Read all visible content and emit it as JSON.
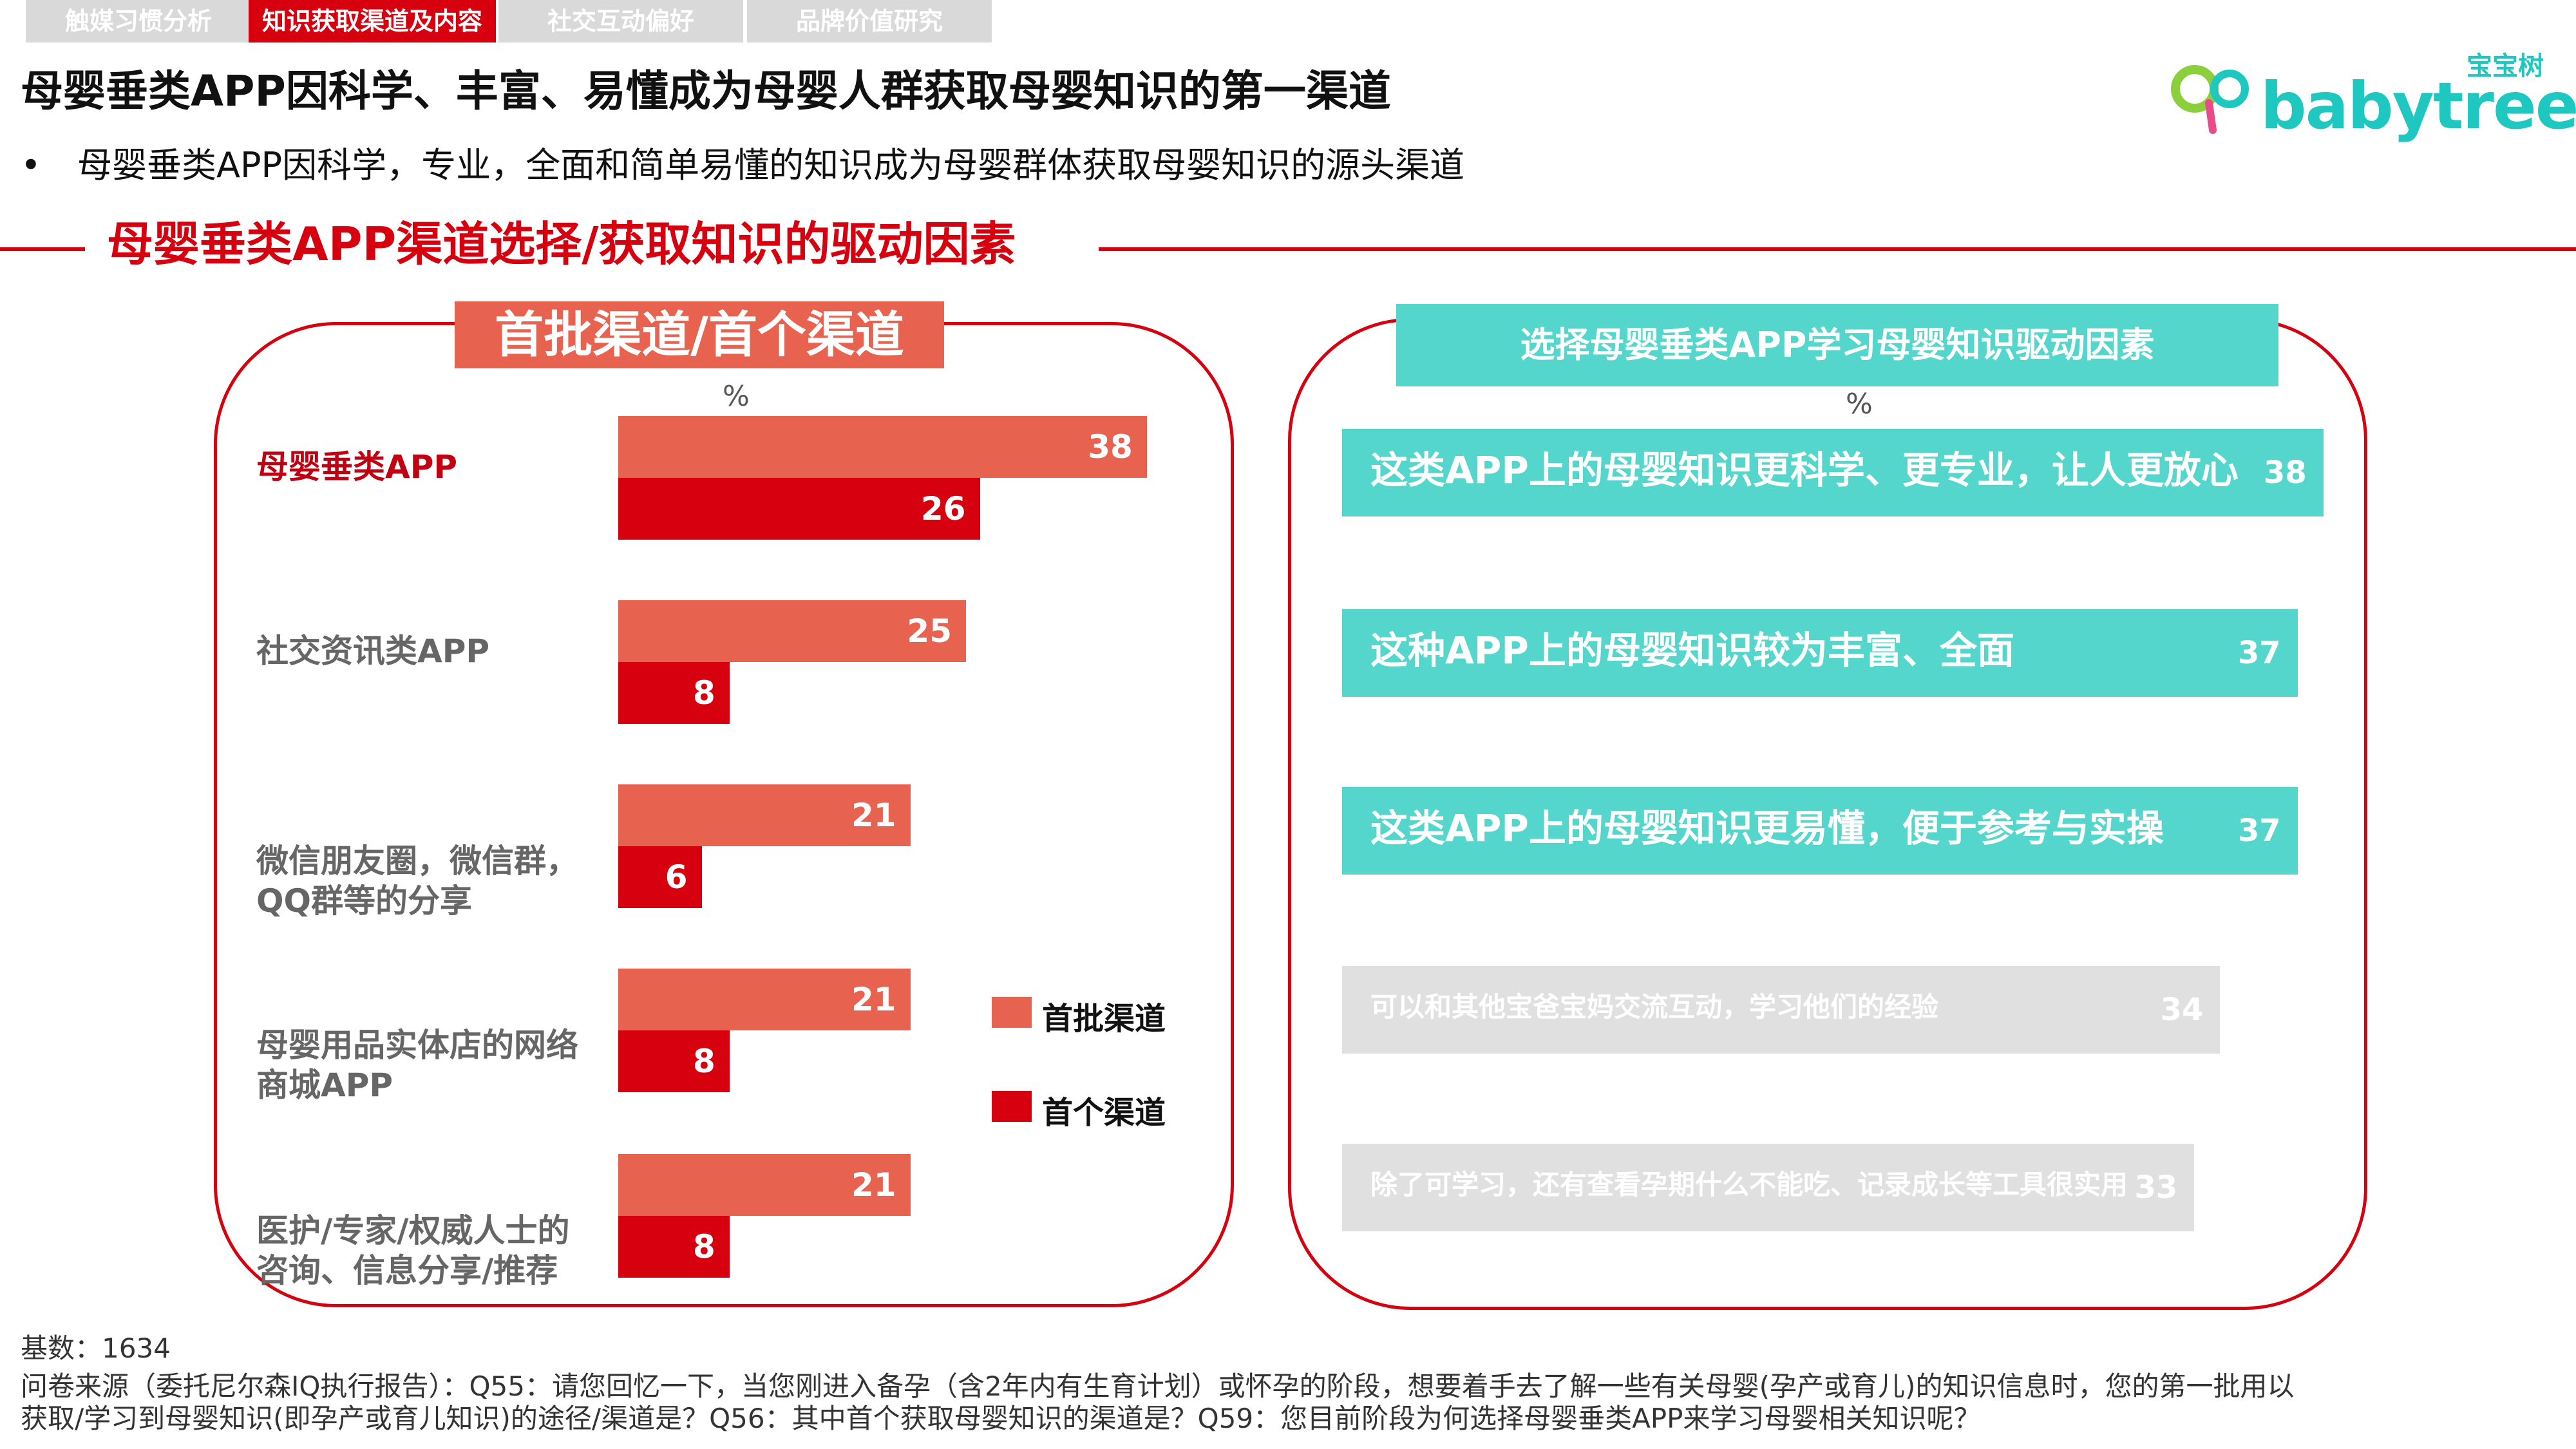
{
  "tabs": [
    {
      "label": "触媒习惯分析",
      "active": false
    },
    {
      "label": "知识获取渠道及内容",
      "active": true
    },
    {
      "label": "社交互动偏好",
      "active": false
    },
    {
      "label": "品牌价值研究",
      "active": false
    }
  ],
  "title": "母婴垂类APP因科学、丰富、易懂成为母婴人群获取母婴知识的第一渠道",
  "bullet": {
    "marker": "•",
    "text": "母婴垂类APP因科学，专业，全面和简单易懂的知识成为母婴群体获取母婴知识的源头渠道"
  },
  "section_title": "母婴垂类APP渠道选择/获取知识的驱动因素",
  "logo": {
    "top": "宝宝树",
    "word": "babytree"
  },
  "colors": {
    "accent_red": "#d6000f",
    "coral": "#e8634f",
    "teal": "#54d6cc",
    "gray": "#e0e0e0"
  },
  "chart_data": [
    {
      "type": "bar",
      "orientation": "horizontal",
      "title": "首批渠道/首个渠道",
      "unit": "%",
      "categories": [
        "母婴垂类APP",
        "社交资讯类APP",
        "微信朋友圈，微信群，QQ群等的分享",
        "母婴用品实体店的网络商城APP",
        "医护/专家/权威人士的咨询、信息分享/推荐"
      ],
      "category_lines": [
        [
          "母婴垂类APP"
        ],
        [
          "社交资讯类APP"
        ],
        [
          "微信朋友圈，微信群，",
          "QQ群等的分享"
        ],
        [
          "母婴用品实体店的网络",
          "商城APP"
        ],
        [
          "医护/专家/权威人士的",
          "咨询、信息分享/推荐"
        ]
      ],
      "series": [
        {
          "name": "首批渠道",
          "color": "#e8634f",
          "values": [
            38,
            25,
            21,
            21,
            21
          ]
        },
        {
          "name": "首个渠道",
          "color": "#d6000f",
          "values": [
            26,
            8,
            6,
            8,
            8
          ]
        }
      ],
      "legend": "right"
    },
    {
      "type": "bar",
      "orientation": "horizontal",
      "title": "选择母婴垂类APP学习母婴知识驱动因素",
      "unit": "%",
      "categories": [
        "这类APP上的母婴知识更科学、更专业，让人更放心",
        "这种APP上的母婴知识较为丰富、全面",
        "这类APP上的母婴知识更易懂，便于参考与实操",
        "可以和其他宝爸宝妈交流互动，学习他们的经验",
        "除了可学习，还有查看孕期什么不能吃、记录成长等工具很实用"
      ],
      "values": [
        38,
        37,
        37,
        34,
        33
      ],
      "highlighted": [
        true,
        true,
        true,
        false,
        false
      ]
    }
  ],
  "footer": {
    "base": "基数：1634",
    "note": "问卷来源（委托尼尔森IQ执行报告）：Q55：请您回忆一下，当您刚进入备孕（含2年内有生育计划）或怀孕的阶段，想要着手去了解一些有关母婴(孕产或育儿)的知识信息时，您的第一批用以获取/学习到母婴知识(即孕产或育儿知识)的途径/渠道是？Q56：其中首个获取母婴知识的渠道是？Q59：您目前阶段为何选择母婴垂类APP来学习母婴相关知识呢？"
  }
}
